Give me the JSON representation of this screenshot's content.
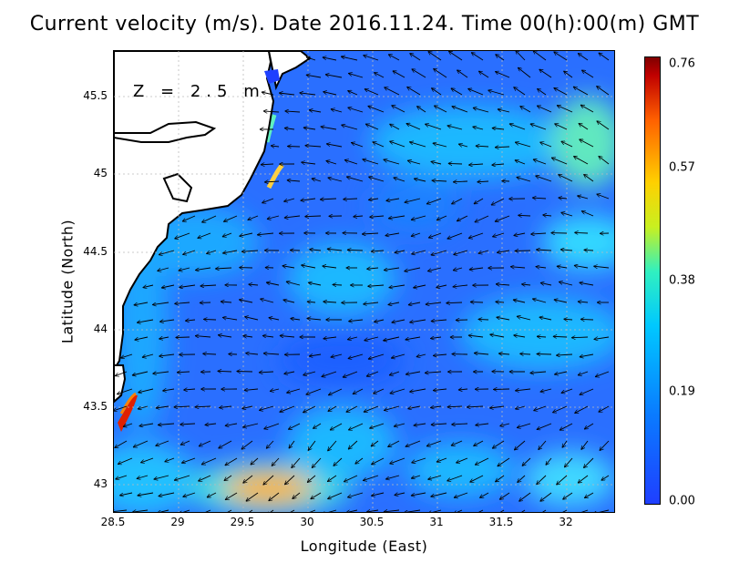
{
  "title": "Current velocity (m/s). Date 2016.11.24. Time 00(h):00(m) GMT",
  "map_label": "Z = 2.5 m",
  "xlabel": "Longitude (East)",
  "ylabel": "Latitude (North)",
  "x_ticks": [
    "28.5",
    "29",
    "29.5",
    "30",
    "30.5",
    "31",
    "31.5",
    "32"
  ],
  "y_ticks": [
    "45.5",
    "45",
    "44.5",
    "44",
    "43.5",
    "43"
  ],
  "colorbar": {
    "ticks": [
      "0.76",
      "0.57",
      "0.38",
      "0.19",
      "0.00"
    ],
    "colors": [
      "#800000",
      "#ffd000",
      "#30f0c0",
      "#0a7bff",
      "#1f3fff"
    ]
  },
  "colors": {
    "land": "#ffffff",
    "coast": "#000000",
    "sea_base": "#2a6fff",
    "grid": "#bbbbbb"
  }
}
